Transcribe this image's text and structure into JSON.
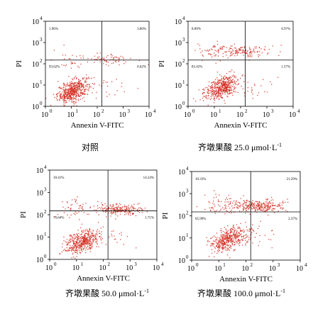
{
  "chart_data": [
    {
      "type": "scatter",
      "title": "对照",
      "xlabel": "Annexin V-FITC",
      "ylabel": "PI",
      "x_scale": "log",
      "y_scale": "log",
      "xlim": [
        1,
        10000
      ],
      "ylim": [
        1,
        10000
      ],
      "x_ticks": [
        "10",
        "10",
        "10",
        "10",
        "10"
      ],
      "x_tick_exponents": [
        "0",
        "1",
        "2",
        "3",
        "4"
      ],
      "y_ticks": [
        "10",
        "10",
        "10",
        "10",
        "10"
      ],
      "y_tick_exponents": [
        "0",
        "1",
        "2",
        "3",
        "4"
      ],
      "quadrant_gate": {
        "x": 150,
        "y": 150
      },
      "quadrants": {
        "upper_left": "1.96%",
        "upper_right": "3.80%",
        "lower_left": "93.62%",
        "lower_right": "0.62%"
      },
      "dot_color": "#d42a1e"
    },
    {
      "type": "scatter",
      "title": "齐墩果酸 25.0 μmol·L",
      "title_superscript": "-1",
      "xlabel": "Annexin V-FITC",
      "ylabel": "PI",
      "x_scale": "log",
      "y_scale": "log",
      "xlim": [
        1,
        10000
      ],
      "ylim": [
        1,
        10000
      ],
      "x_ticks": [
        "10",
        "10",
        "10",
        "10",
        "10"
      ],
      "x_tick_exponents": [
        "0",
        "1",
        "2",
        "3",
        "4"
      ],
      "y_ticks": [
        "10",
        "10",
        "10",
        "10",
        "10"
      ],
      "y_tick_exponents": [
        "0",
        "1",
        "2",
        "3",
        "4"
      ],
      "quadrant_gate": {
        "x": 150,
        "y": 150
      },
      "quadrants": {
        "upper_left": "8.09%",
        "upper_right": "6.9?%",
        "lower_left": "83.42%",
        "lower_right": "1.57%"
      },
      "dot_color": "#d42a1e"
    },
    {
      "type": "scatter",
      "title": "齐墩果酸 50.0 μmol·L",
      "title_superscript": "-1",
      "xlabel": "Annexin V-FITC",
      "ylabel": "PI",
      "x_scale": "log",
      "y_scale": "log",
      "xlim": [
        1,
        10000
      ],
      "ylim": [
        1,
        10000
      ],
      "x_ticks": [
        "10",
        "10",
        "10",
        "10",
        "10"
      ],
      "x_tick_exponents": [
        "0",
        "1",
        "2",
        "3",
        "4"
      ],
      "y_ticks": [
        "10",
        "10",
        "10",
        "10",
        "10"
      ],
      "y_tick_exponents": [
        "0",
        "1",
        "2",
        "3",
        "4"
      ],
      "quadrant_gate": {
        "x": 150,
        "y": 150
      },
      "quadrants": {
        "upper_left": "10.41%",
        "upper_right": "14.24%",
        "lower_left": "73.64%",
        "lower_right": "1.71%"
      },
      "dot_color": "#d42a1e"
    },
    {
      "type": "scatter",
      "title": "齐墩果酸 100.0 μmol·L",
      "title_superscript": "-1",
      "xlabel": "Annexin V-FITC",
      "ylabel": "PI",
      "x_scale": "log",
      "y_scale": "log",
      "xlim": [
        1,
        10000
      ],
      "ylim": [
        1,
        10000
      ],
      "x_ticks": [
        "10",
        "10",
        "10",
        "10",
        "10"
      ],
      "x_tick_exponents": [
        "0",
        "1",
        "2",
        "3",
        "4"
      ],
      "y_ticks": [
        "10",
        "10",
        "10",
        "10",
        "10"
      ],
      "y_tick_exponents": [
        "0",
        "1",
        "2",
        "3",
        "4"
      ],
      "quadrant_gate": {
        "x": 150,
        "y": 150
      },
      "quadrants": {
        "upper_left": "10.33%",
        "upper_right": "21.29%",
        "lower_left": "65.99%",
        "lower_right": "2.37%"
      },
      "dot_color": "#d42a1e"
    }
  ]
}
